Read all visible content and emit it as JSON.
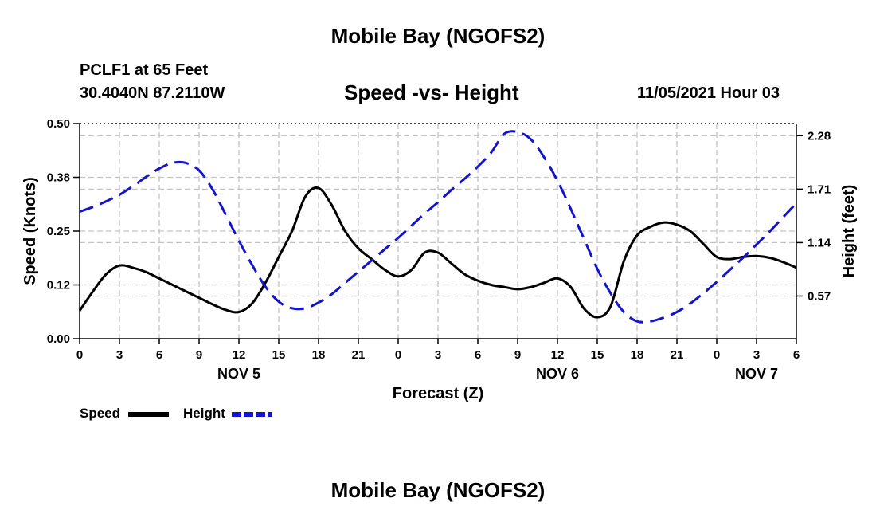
{
  "header": {
    "title": "Mobile Bay (NGOFS2)",
    "station": "PCLF1 at 65 Feet",
    "coordinates": "30.4040N  87.2110W",
    "datetime": "11/05/2021 Hour 03"
  },
  "footer": {
    "title": "Mobile Bay (NGOFS2)"
  },
  "chart_data": {
    "type": "line",
    "title": "Speed -vs- Height",
    "xlabel": "Forecast (Z)",
    "ylabel": "Speed (Knots)",
    "y2label": "Height (feet)",
    "x_unit": "hours from NOV 5 00Z",
    "xlim": [
      0,
      54
    ],
    "x_ticks": [
      0,
      3,
      6,
      9,
      12,
      15,
      18,
      21,
      24,
      27,
      30,
      33,
      36,
      39,
      42,
      45,
      48,
      51,
      54
    ],
    "x_tick_labels": [
      "0",
      "3",
      "6",
      "9",
      "12",
      "15",
      "18",
      "21",
      "0",
      "3",
      "6",
      "9",
      "12",
      "15",
      "18",
      "21",
      "0",
      "3",
      "6"
    ],
    "day_labels": [
      {
        "x": 12,
        "label": "NOV 5"
      },
      {
        "x": 36,
        "label": "NOV 6"
      },
      {
        "x": 51,
        "label": "NOV 7"
      }
    ],
    "ylim": [
      0,
      0.5
    ],
    "y_ticks": [
      0,
      0.125,
      0.25,
      0.375,
      0.5
    ],
    "y_tick_labels": [
      "0.00",
      "0.12",
      "0.25",
      "0.38",
      "0.50"
    ],
    "y2lim": [
      0.115,
      2.41
    ],
    "y2_ticks": [
      0.57,
      1.14,
      1.71,
      2.28
    ],
    "y2_tick_labels": [
      "0.57",
      "1.14",
      "1.71",
      "2.28"
    ],
    "grid": true,
    "legend_position": "bottom-left",
    "series": [
      {
        "name": "Speed",
        "axis": "left",
        "color": "#000000",
        "style": "solid",
        "x": [
          0,
          1,
          2,
          3,
          4,
          5,
          6,
          7,
          8,
          9,
          10,
          11,
          12,
          13,
          14,
          15,
          16,
          17,
          18,
          19,
          20,
          21,
          22,
          23,
          24,
          25,
          26,
          27,
          28,
          29,
          30,
          31,
          32,
          33,
          34,
          35,
          36,
          37,
          38,
          39,
          40,
          41,
          42,
          43,
          44,
          45,
          46,
          47,
          48,
          49,
          50,
          51,
          52,
          53,
          54
        ],
        "values": [
          0.065,
          0.11,
          0.15,
          0.17,
          0.165,
          0.155,
          0.14,
          0.125,
          0.11,
          0.095,
          0.08,
          0.067,
          0.062,
          0.082,
          0.13,
          0.19,
          0.25,
          0.33,
          0.35,
          0.31,
          0.25,
          0.21,
          0.185,
          0.16,
          0.145,
          0.16,
          0.2,
          0.2,
          0.175,
          0.15,
          0.135,
          0.125,
          0.12,
          0.115,
          0.12,
          0.13,
          0.14,
          0.12,
          0.07,
          0.05,
          0.075,
          0.18,
          0.24,
          0.26,
          0.27,
          0.265,
          0.25,
          0.22,
          0.19,
          0.185,
          0.19,
          0.192,
          0.188,
          0.178,
          0.165
        ]
      },
      {
        "name": "Height",
        "axis": "right",
        "color": "#1414c8",
        "style": "dashed",
        "x": [
          0,
          1,
          2,
          3,
          4,
          5,
          6,
          7,
          8,
          9,
          10,
          11,
          12,
          13,
          14,
          15,
          16,
          17,
          18,
          19,
          20,
          21,
          22,
          23,
          24,
          25,
          26,
          27,
          28,
          29,
          30,
          31,
          32,
          33,
          34,
          35,
          36,
          37,
          38,
          39,
          40,
          41,
          42,
          43,
          44,
          45,
          46,
          47,
          48,
          49,
          50,
          51,
          52,
          53,
          54
        ],
        "values": [
          1.47,
          1.52,
          1.58,
          1.65,
          1.74,
          1.84,
          1.93,
          1.99,
          1.99,
          1.91,
          1.71,
          1.44,
          1.16,
          0.9,
          0.67,
          0.51,
          0.44,
          0.44,
          0.5,
          0.59,
          0.71,
          0.83,
          0.95,
          1.07,
          1.19,
          1.32,
          1.45,
          1.57,
          1.7,
          1.82,
          1.95,
          2.1,
          2.3,
          2.32,
          2.24,
          2.05,
          1.8,
          1.5,
          1.18,
          0.86,
          0.6,
          0.4,
          0.3,
          0.3,
          0.34,
          0.4,
          0.49,
          0.6,
          0.72,
          0.85,
          0.98,
          1.12,
          1.26,
          1.41,
          1.56
        ]
      }
    ]
  }
}
